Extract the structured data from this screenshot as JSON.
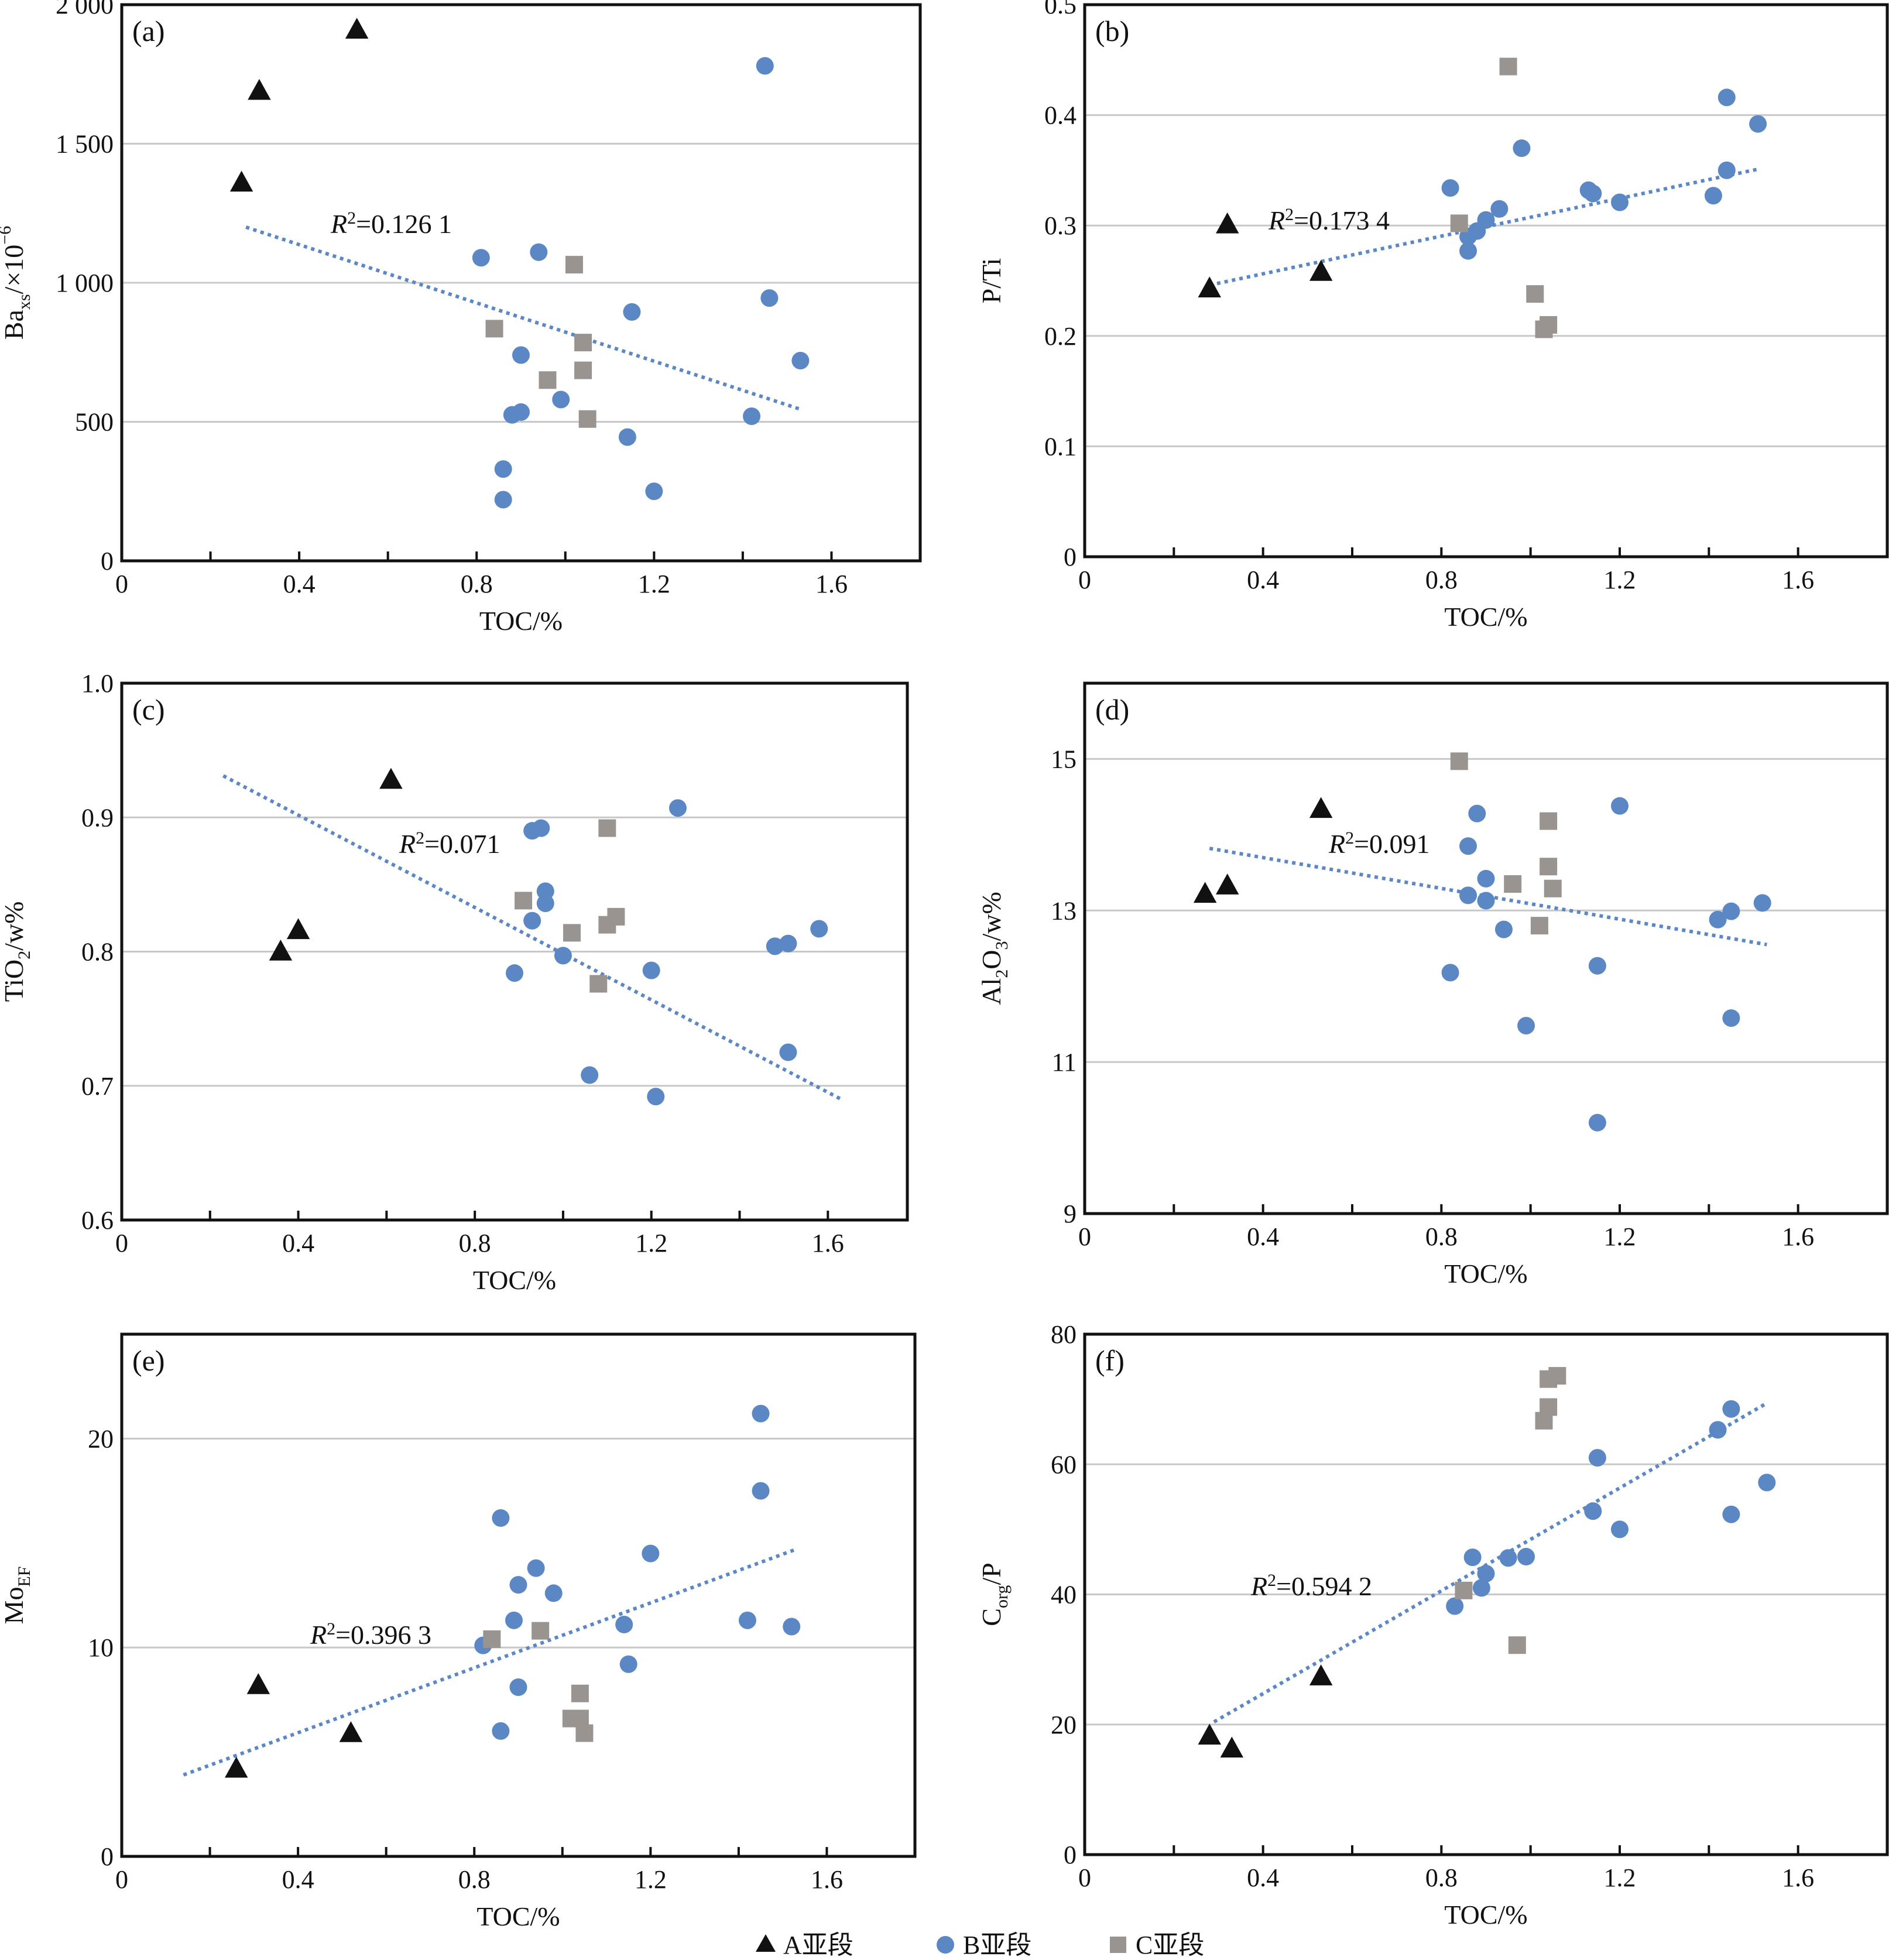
{
  "colors": {
    "A": "#111111",
    "B": "#5b87c5",
    "C": "#9a9490",
    "trend": "#5b87c5",
    "grid": "#c8c8c8"
  },
  "legend": [
    {
      "key": "A",
      "shape": "triangle",
      "label": "A亚段"
    },
    {
      "key": "B",
      "shape": "circle",
      "label": "B亚段"
    },
    {
      "key": "C",
      "shape": "square",
      "label": "C亚段"
    }
  ],
  "chart_data": [
    {
      "type": "scatter",
      "panel": "(a)",
      "xlabel": "TOC/%",
      "ylabel": "Ba",
      "ylabel_sub": "xs",
      "ylabel_suffix": "/×10",
      "ylabel_sup": "−6",
      "xlim": [
        0,
        1.8
      ],
      "ylim": [
        0,
        2000
      ],
      "xticks": [
        0,
        0.4,
        0.8,
        1.2,
        1.6
      ],
      "xtick_labels": [
        "0",
        "0.4",
        "0.8",
        "1.2",
        "1.6"
      ],
      "yticks": [
        0,
        500,
        1000,
        1500,
        2000
      ],
      "ytick_labels": [
        "0",
        "500",
        "1 000",
        "1 500",
        "2 000"
      ],
      "grid": true,
      "r2_label": "=0.126 1",
      "trend": {
        "x": [
          0.28,
          1.53
        ],
        "y": [
          1200,
          545
        ]
      },
      "series": [
        {
          "key": "A",
          "points": [
            [
              0.27,
              1360
            ],
            [
              0.31,
              1690
            ],
            [
              0.53,
              1910
            ]
          ]
        },
        {
          "key": "B",
          "points": [
            [
              0.81,
              1090
            ],
            [
              0.94,
              1110
            ],
            [
              0.9,
              740
            ],
            [
              1.15,
              895
            ],
            [
              1.46,
              945
            ],
            [
              1.45,
              1780
            ],
            [
              1.53,
              720
            ],
            [
              0.88,
              525
            ],
            [
              0.9,
              535
            ],
            [
              0.99,
              580
            ],
            [
              1.14,
              445
            ],
            [
              1.42,
              520
            ],
            [
              0.86,
              330
            ],
            [
              0.86,
              220
            ],
            [
              1.2,
              250
            ]
          ]
        },
        {
          "key": "C",
          "points": [
            [
              0.84,
              835
            ],
            [
              1.02,
              1065
            ],
            [
              1.04,
              785
            ],
            [
              0.96,
              650
            ],
            [
              1.04,
              685
            ],
            [
              1.05,
              510
            ]
          ]
        }
      ]
    },
    {
      "type": "scatter",
      "panel": "(b)",
      "xlabel": "TOC/%",
      "ylabel": "P/Ti",
      "xlim": [
        0,
        1.8
      ],
      "ylim": [
        0,
        0.5
      ],
      "xticks": [
        0,
        0.4,
        0.8,
        1.2,
        1.6
      ],
      "xtick_labels": [
        "0",
        "0.4",
        "0.8",
        "1.2",
        "1.6"
      ],
      "yticks": [
        0,
        0.1,
        0.2,
        0.3,
        0.4,
        0.5
      ],
      "ytick_labels": [
        "0",
        "0.1",
        "0.2",
        "0.3",
        "0.4",
        "0.5"
      ],
      "grid": true,
      "r2_label": "=0.173 4",
      "trend": {
        "x": [
          0.28,
          1.51
        ],
        "y": [
          0.246,
          0.351
        ]
      },
      "series": [
        {
          "key": "A",
          "points": [
            [
              0.28,
              0.243
            ],
            [
              0.32,
              0.301
            ],
            [
              0.53,
              0.258
            ]
          ]
        },
        {
          "key": "B",
          "points": [
            [
              0.82,
              0.334
            ],
            [
              0.86,
              0.277
            ],
            [
              0.86,
              0.29
            ],
            [
              0.88,
              0.295
            ],
            [
              0.9,
              0.305
            ],
            [
              0.93,
              0.315
            ],
            [
              0.98,
              0.37
            ],
            [
              1.13,
              0.332
            ],
            [
              1.14,
              0.329
            ],
            [
              1.2,
              0.321
            ],
            [
              1.41,
              0.327
            ],
            [
              1.44,
              0.416
            ],
            [
              1.44,
              0.35
            ],
            [
              1.51,
              0.392
            ]
          ]
        },
        {
          "key": "C",
          "points": [
            [
              0.84,
              0.302
            ],
            [
              0.95,
              0.444
            ],
            [
              1.01,
              0.238
            ],
            [
              1.03,
              0.206
            ],
            [
              1.04,
              0.21
            ]
          ]
        }
      ]
    },
    {
      "type": "scatter",
      "panel": "(c)",
      "xlabel": "TOC/%",
      "ylabel": "TiO",
      "ylabel_sub": "2",
      "ylabel_suffix": "/w%",
      "xlim": [
        0,
        1.78
      ],
      "ylim": [
        0.6,
        1.0
      ],
      "xticks": [
        0,
        0.4,
        0.8,
        1.2,
        1.6
      ],
      "xtick_labels": [
        "0",
        "0.4",
        "0.8",
        "1.2",
        "1.6"
      ],
      "yticks": [
        0.6,
        0.7,
        0.8,
        0.9,
        1.0
      ],
      "ytick_labels": [
        "0.6",
        "0.7",
        "0.8",
        "0.9",
        "1.0"
      ],
      "grid": true,
      "r2_label": "=0.071",
      "trend": {
        "x": [
          0.23,
          1.63
        ],
        "y": [
          0.931,
          0.69
        ]
      },
      "series": [
        {
          "key": "A",
          "points": [
            [
              0.36,
              0.8
            ],
            [
              0.4,
              0.816
            ],
            [
              0.61,
              0.928
            ]
          ]
        },
        {
          "key": "B",
          "points": [
            [
              0.93,
              0.89
            ],
            [
              0.95,
              0.892
            ],
            [
              0.96,
              0.845
            ],
            [
              0.96,
              0.836
            ],
            [
              0.93,
              0.823
            ],
            [
              0.89,
              0.784
            ],
            [
              1.0,
              0.797
            ],
            [
              1.2,
              0.786
            ],
            [
              1.26,
              0.907
            ],
            [
              1.48,
              0.804
            ],
            [
              1.51,
              0.806
            ],
            [
              1.58,
              0.817
            ],
            [
              1.51,
              0.725
            ],
            [
              1.06,
              0.708
            ],
            [
              1.21,
              0.692
            ]
          ]
        },
        {
          "key": "C",
          "points": [
            [
              0.91,
              0.838
            ],
            [
              1.02,
              0.814
            ],
            [
              1.1,
              0.892
            ],
            [
              1.1,
              0.82
            ],
            [
              1.12,
              0.826
            ],
            [
              1.08,
              0.776
            ]
          ]
        }
      ]
    },
    {
      "type": "scatter",
      "panel": "(d)",
      "xlabel": "TOC/%",
      "ylabel": "Al",
      "ylabel_sub": "2",
      "ylabel_mid": "O",
      "ylabel_sub2": "3",
      "ylabel_suffix": "/w%",
      "xlim": [
        0,
        1.8
      ],
      "ylim": [
        9,
        16
      ],
      "xticks": [
        0,
        0.4,
        0.8,
        1.2,
        1.6
      ],
      "xtick_labels": [
        "0",
        "0.4",
        "0.8",
        "1.2",
        "1.6"
      ],
      "yticks": [
        9,
        11,
        13,
        15
      ],
      "ytick_labels": [
        "9",
        "11",
        "13",
        "15"
      ],
      "gridlines": [
        11,
        13,
        15
      ],
      "grid": true,
      "r2_label": "=0.091",
      "trend": {
        "x": [
          0.28,
          1.53
        ],
        "y": [
          13.82,
          12.55
        ]
      },
      "series": [
        {
          "key": "A",
          "points": [
            [
              0.27,
              13.22
            ],
            [
              0.32,
              13.33
            ],
            [
              0.53,
              14.34
            ]
          ]
        },
        {
          "key": "B",
          "points": [
            [
              0.88,
              14.28
            ],
            [
              0.86,
              13.85
            ],
            [
              0.9,
              13.42
            ],
            [
              0.86,
              13.2
            ],
            [
              0.9,
              13.13
            ],
            [
              0.94,
              12.75
            ],
            [
              0.82,
              12.18
            ],
            [
              0.99,
              11.48
            ],
            [
              1.15,
              12.27
            ],
            [
              1.2,
              14.38
            ],
            [
              1.42,
              12.88
            ],
            [
              1.45,
              12.99
            ],
            [
              1.45,
              11.58
            ],
            [
              1.52,
              13.1
            ],
            [
              1.15,
              10.2
            ]
          ]
        },
        {
          "key": "C",
          "points": [
            [
              0.84,
              14.97
            ],
            [
              1.04,
              14.18
            ],
            [
              1.04,
              13.58
            ],
            [
              0.96,
              13.35
            ],
            [
              1.05,
              13.29
            ],
            [
              1.02,
              12.8
            ]
          ]
        }
      ]
    },
    {
      "type": "scatter",
      "panel": "(e)",
      "xlabel": "TOC/%",
      "ylabel": "Mo",
      "ylabel_sub": "EF",
      "xlim": [
        0,
        1.8
      ],
      "ylim": [
        0,
        25
      ],
      "xticks": [
        0,
        0.4,
        0.8,
        1.2,
        1.6
      ],
      "xtick_labels": [
        "0",
        "0.4",
        "0.8",
        "1.2",
        "1.6"
      ],
      "yticks": [
        0,
        10,
        20
      ],
      "ytick_labels": [
        "0",
        "10",
        "20"
      ],
      "gridlines": [
        10,
        20
      ],
      "grid": true,
      "r2_label": "=0.396 3",
      "trend": {
        "x": [
          0.14,
          1.53
        ],
        "y": [
          3.9,
          14.7
        ]
      },
      "series": [
        {
          "key": "A",
          "points": [
            [
              0.26,
              4.2
            ],
            [
              0.31,
              8.2
            ],
            [
              0.52,
              5.9
            ]
          ]
        },
        {
          "key": "B",
          "points": [
            [
              0.86,
              16.2
            ],
            [
              0.94,
              13.8
            ],
            [
              0.9,
              13.0
            ],
            [
              0.98,
              12.6
            ],
            [
              0.89,
              11.3
            ],
            [
              0.82,
              10.1
            ],
            [
              0.9,
              8.1
            ],
            [
              0.86,
              6.0
            ],
            [
              1.14,
              11.1
            ],
            [
              1.15,
              9.2
            ],
            [
              1.2,
              14.5
            ],
            [
              1.42,
              11.3
            ],
            [
              1.45,
              17.5
            ],
            [
              1.45,
              21.2
            ],
            [
              1.52,
              11.0
            ]
          ]
        },
        {
          "key": "C",
          "points": [
            [
              0.84,
              10.4
            ],
            [
              0.95,
              10.8
            ],
            [
              1.04,
              7.8
            ],
            [
              1.02,
              6.6
            ],
            [
              1.04,
              6.6
            ],
            [
              1.05,
              5.9
            ]
          ]
        }
      ]
    },
    {
      "type": "scatter",
      "panel": "(f)",
      "xlabel": "TOC/%",
      "ylabel": "C",
      "ylabel_sub": "org",
      "ylabel_suffix": "/P",
      "xlim": [
        0,
        1.8
      ],
      "ylim": [
        0,
        80
      ],
      "xticks": [
        0,
        0.4,
        0.8,
        1.2,
        1.6
      ],
      "xtick_labels": [
        "0",
        "0.4",
        "0.8",
        "1.2",
        "1.6"
      ],
      "yticks": [
        0,
        20,
        40,
        60,
        80
      ],
      "ytick_labels": [
        "0",
        "20",
        "40",
        "60",
        "80"
      ],
      "grid": true,
      "r2_label": "=0.594 2",
      "trend": {
        "x": [
          0.29,
          1.53
        ],
        "y": [
          20.4,
          69.4
        ]
      },
      "series": [
        {
          "key": "A",
          "points": [
            [
              0.28,
              18.3
            ],
            [
              0.33,
              16.3
            ],
            [
              0.53,
              27.4
            ]
          ]
        },
        {
          "key": "B",
          "points": [
            [
              0.83,
              38.2
            ],
            [
              0.87,
              45.7
            ],
            [
              0.89,
              41.0
            ],
            [
              0.9,
              43.2
            ],
            [
              0.95,
              45.6
            ],
            [
              0.99,
              45.8
            ],
            [
              1.14,
              52.8
            ],
            [
              1.15,
              61.0
            ],
            [
              1.2,
              50.0
            ],
            [
              1.42,
              65.3
            ],
            [
              1.45,
              68.5
            ],
            [
              1.45,
              52.3
            ],
            [
              1.53,
              57.2
            ]
          ]
        },
        {
          "key": "C",
          "points": [
            [
              0.85,
              40.6
            ],
            [
              0.97,
              32.2
            ],
            [
              1.03,
              66.7
            ],
            [
              1.04,
              68.8
            ],
            [
              1.04,
              73.1
            ],
            [
              1.06,
              73.6
            ]
          ]
        }
      ]
    }
  ]
}
